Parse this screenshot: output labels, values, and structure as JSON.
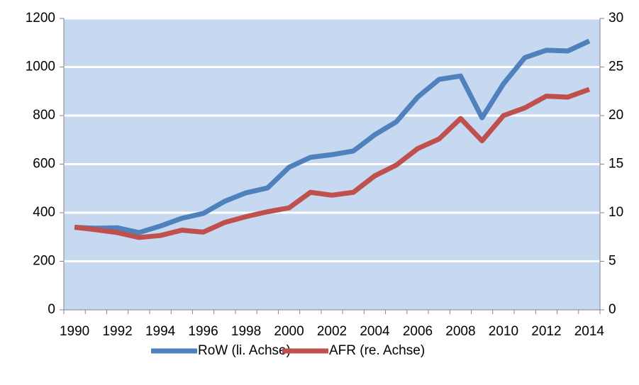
{
  "chart_data": {
    "type": "line",
    "categories": [
      "1990",
      null,
      "1992",
      null,
      "1994",
      null,
      "1996",
      null,
      "1998",
      null,
      "2000",
      null,
      "2002",
      null,
      "2004",
      null,
      "2006",
      null,
      "2008",
      null,
      "2010",
      null,
      "2012",
      null,
      "2014"
    ],
    "series": [
      {
        "name": "RoW (li. Achse)",
        "color": "#4f81bd",
        "axis": "y",
        "values": [
          340,
          336,
          338,
          318,
          345,
          377,
          397,
          447,
          482,
          502,
          587,
          628,
          639,
          654,
          721,
          774,
          876,
          949,
          963,
          791,
          931,
          1039,
          1069,
          1066,
          1107
        ]
      },
      {
        "name": "AFR (re. Achse)",
        "color": "#c0504d",
        "axis": "y2",
        "values": [
          8.5,
          8.25,
          7.95,
          7.45,
          7.65,
          8.2,
          8.0,
          9.0,
          9.6,
          10.1,
          10.5,
          12.1,
          11.8,
          12.1,
          13.8,
          14.9,
          16.6,
          17.6,
          19.7,
          17.4,
          20.0,
          20.8,
          22.0,
          21.9,
          22.7
        ]
      }
    ],
    "ylim": [
      0,
      1200
    ],
    "yticks": [
      0,
      200,
      400,
      600,
      800,
      1000,
      1200
    ],
    "y2lim": [
      0,
      30
    ],
    "y2ticks": [
      0,
      5,
      10,
      15,
      20,
      25,
      30
    ],
    "grid": true,
    "plot_background": "#c6d9f0",
    "legend": "bottom"
  }
}
